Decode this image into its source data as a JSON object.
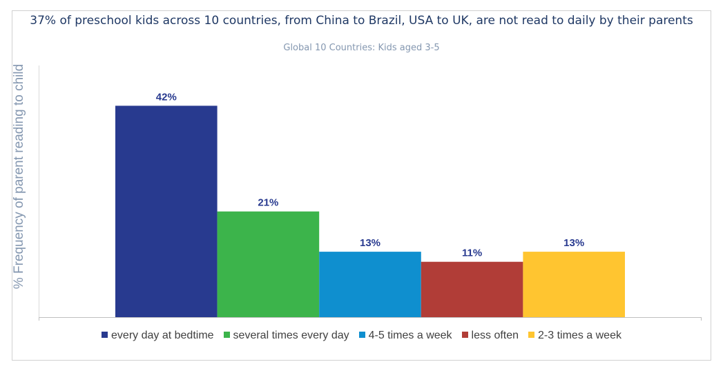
{
  "chart_data": {
    "type": "bar",
    "title": "37% of preschool kids across 10 countries, from China to Brazil, USA to UK, are not read to daily by their parents",
    "subtitle": "Global 10 Countries: Kids aged 3-5",
    "xlabel": "",
    "ylabel": "% Frequency of parent reading to child",
    "ylim": [
      0,
      50
    ],
    "grid": false,
    "legend_position": "bottom",
    "categories": [
      "every day at bedtime",
      "several times every day",
      "4-5 times a week",
      "less often",
      "2-3 times a week"
    ],
    "values": [
      42,
      21,
      13,
      11,
      13
    ],
    "data_labels": [
      "42%",
      "21%",
      "13%",
      "11%",
      "13%"
    ],
    "colors": [
      "#283a8f",
      "#3cb44b",
      "#0f8fcf",
      "#b13d37",
      "#ffc530"
    ]
  }
}
